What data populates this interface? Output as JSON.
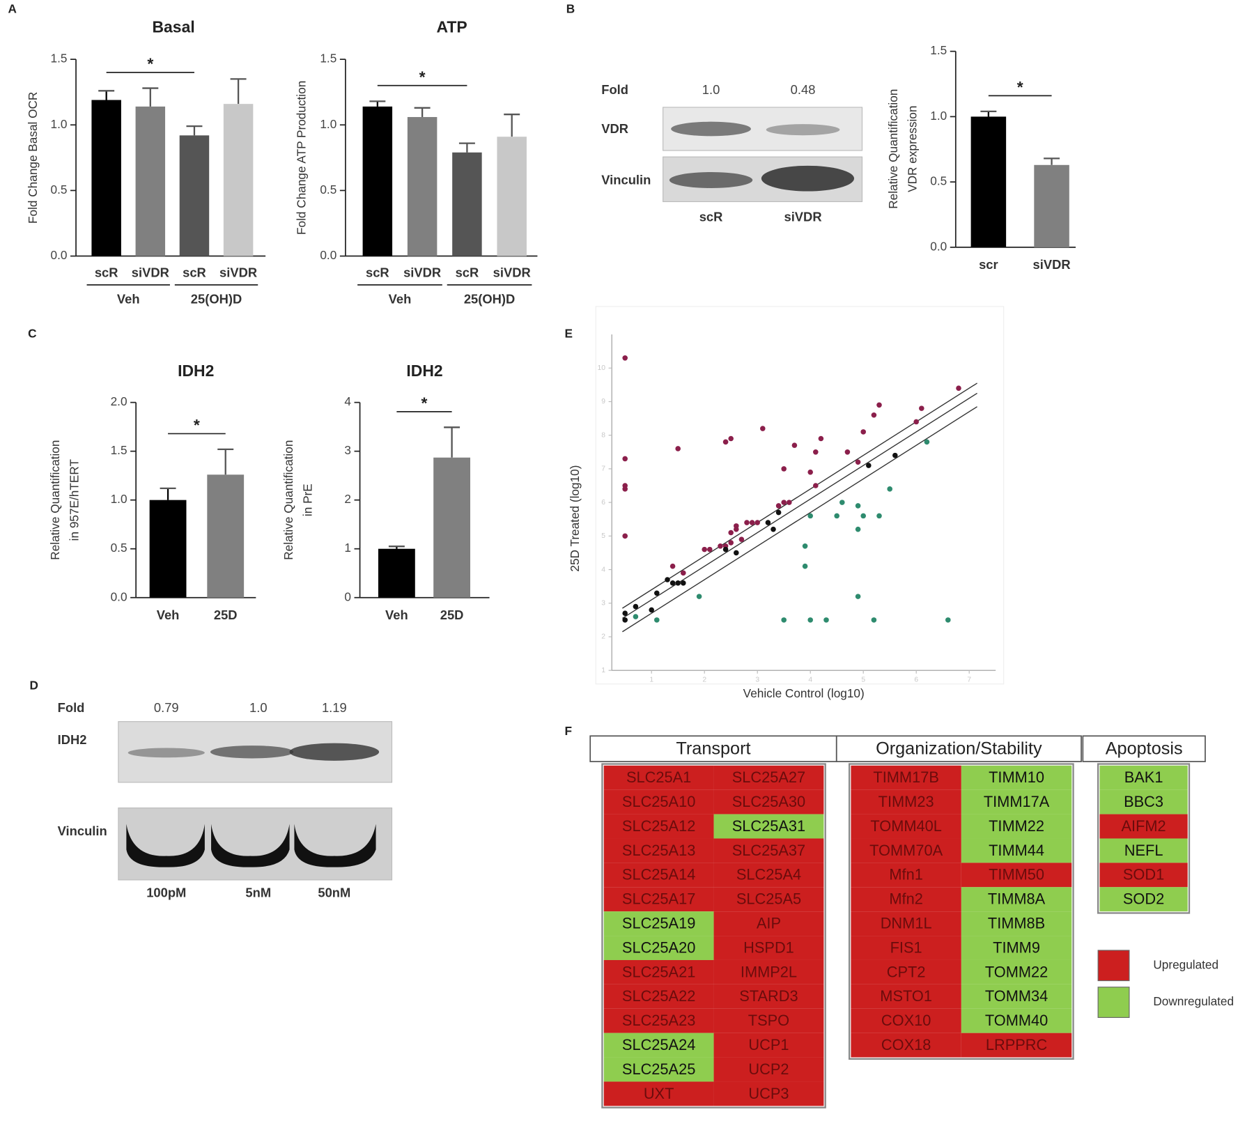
{
  "panels": [
    "A",
    "B",
    "C",
    "D",
    "E",
    "F"
  ],
  "chart_data": [
    {
      "type": "bar",
      "title": "Basal",
      "ylabel": [
        "Fold Change Basal OCR"
      ],
      "categories": [
        "scR",
        "siVDR",
        "scR",
        "siVDR"
      ],
      "groups": [
        "Veh",
        "25(OH)D"
      ],
      "values": [
        1.19,
        1.14,
        0.92,
        1.16
      ],
      "errors": [
        0.07,
        0.14,
        0.07,
        0.19
      ],
      "colors": [
        "#000000",
        "#808080",
        "#555555",
        "#c8c8c8"
      ],
      "ylim": [
        0,
        1.5
      ],
      "yticks": [
        {
          "value": 0,
          "label": "0.0"
        },
        0.5,
        {
          "value": 1,
          "label": "1.0"
        },
        1.5
      ],
      "significance": {
        "label": "*",
        "pair": [
          0,
          2
        ]
      }
    },
    {
      "type": "bar",
      "title": "ATP",
      "ylabel": [
        "Fold Change ATP Production"
      ],
      "categories": [
        "scR",
        "siVDR",
        "scR",
        "siVDR"
      ],
      "groups": [
        "Veh",
        "25(OH)D"
      ],
      "values": [
        1.14,
        1.06,
        0.79,
        0.91
      ],
      "errors": [
        0.04,
        0.07,
        0.07,
        0.17
      ],
      "colors": [
        "#000000",
        "#808080",
        "#555555",
        "#c8c8c8"
      ],
      "ylim": [
        0,
        1.5
      ],
      "yticks": [
        {
          "value": 0,
          "label": "0.0"
        },
        0.5,
        {
          "value": 1,
          "label": "1.0"
        },
        1.5
      ],
      "significance": {
        "label": "*",
        "pair": [
          0,
          2
        ]
      }
    },
    {
      "type": "bar",
      "ylabel": [
        "Relative Quantification",
        "VDR expression"
      ],
      "categories": [
        "scr",
        "siVDR"
      ],
      "values": [
        1.0,
        0.63
      ],
      "errors": [
        0.04,
        0.05
      ],
      "colors": [
        "#000000",
        "#808080"
      ],
      "ylim": [
        0,
        1.5
      ],
      "yticks": [
        {
          "value": 0,
          "label": "0.0"
        },
        0.5,
        {
          "value": 1,
          "label": "1.0"
        },
        1.5
      ],
      "significance": {
        "label": "*",
        "pair": [
          0,
          1
        ]
      }
    },
    {
      "type": "bar",
      "title": "IDH2",
      "ylabel": [
        "Relative Quantification",
        "in 957E/hTERT"
      ],
      "categories": [
        "Veh",
        "25D"
      ],
      "values": [
        1.0,
        1.26
      ],
      "errors": [
        0.12,
        0.26
      ],
      "colors": [
        "#000000",
        "#808080"
      ],
      "ylim": [
        0,
        2
      ],
      "yticks": [
        {
          "value": 0,
          "label": "0.0"
        },
        0.5,
        {
          "value": 1,
          "label": "1.0"
        },
        1.5,
        {
          "value": 2,
          "label": "2.0"
        }
      ],
      "significance": {
        "label": "*",
        "pair": [
          0,
          1
        ]
      }
    },
    {
      "type": "bar",
      "title": "IDH2",
      "ylabel": [
        "Relative Quantification",
        "in PrE"
      ],
      "categories": [
        "Veh",
        "25D"
      ],
      "values": [
        1.0,
        2.87
      ],
      "errors": [
        0.05,
        0.62
      ],
      "colors": [
        "#000000",
        "#808080"
      ],
      "ylim": [
        0,
        4
      ],
      "yticks": [
        0,
        1,
        2,
        3,
        4
      ],
      "significance": {
        "label": "*",
        "pair": [
          0,
          1
        ]
      }
    },
    {
      "type": "scatter",
      "xlabel": "Vehicle Control (log10)",
      "ylabel": "25D Treated (log10)",
      "xlim": [
        0.25,
        7.5
      ],
      "ylim": [
        1,
        11
      ],
      "xticks": [
        1,
        2,
        3,
        4,
        5,
        6,
        7
      ],
      "yticks": [
        1,
        2,
        3,
        4,
        5,
        6,
        7,
        8,
        9,
        10
      ],
      "reference_lines": [
        {
          "slope": 1,
          "intercept": 2.4
        },
        {
          "slope": 1,
          "intercept": 2.1
        },
        {
          "slope": 1,
          "intercept": 1.7
        }
      ],
      "series": [
        {
          "color": "#8b1f4b",
          "x": [
            0.5,
            0.5,
            0.5,
            0.5,
            0.5,
            1.5,
            2.4,
            2.5,
            3.1,
            3.7,
            4.2,
            4.7,
            5.0,
            5.2,
            5.3,
            6.0,
            6.1,
            6.8,
            4.1,
            3.5,
            4.0,
            4.1,
            4.9,
            1.4,
            1.6,
            2.0,
            2.1,
            2.3,
            2.5,
            2.6,
            2.6,
            2.8,
            2.9,
            3.0,
            2.7,
            3.4,
            3.5,
            3.6,
            2.5,
            2.4
          ],
          "values": [
            10.3,
            7.3,
            6.5,
            6.4,
            5.0,
            7.6,
            7.8,
            7.9,
            8.2,
            7.7,
            7.9,
            7.5,
            8.1,
            8.6,
            8.9,
            8.4,
            8.8,
            9.4,
            7.5,
            7.0,
            6.9,
            6.5,
            7.2,
            4.1,
            3.9,
            4.6,
            4.6,
            4.7,
            5.1,
            5.2,
            5.3,
            5.4,
            5.4,
            5.4,
            4.9,
            5.9,
            6.0,
            6.0,
            4.8,
            4.7
          ]
        },
        {
          "color": "#111111",
          "x": [
            0.5,
            0.5,
            0.7,
            1.0,
            1.1,
            1.3,
            1.4,
            1.5,
            1.6,
            2.4,
            2.6,
            3.2,
            3.3,
            3.4,
            5.1,
            5.6
          ],
          "values": [
            2.7,
            2.5,
            2.9,
            2.8,
            3.3,
            3.7,
            3.6,
            3.6,
            3.6,
            4.6,
            4.5,
            5.4,
            5.2,
            5.7,
            7.1,
            7.4
          ]
        },
        {
          "color": "#2e8b6e",
          "x": [
            0.7,
            1.1,
            1.9,
            3.5,
            4.0,
            4.3,
            5.2,
            6.6,
            4.9,
            3.9,
            3.9,
            4.0,
            4.5,
            4.6,
            4.9,
            5.0,
            5.3,
            5.5,
            6.2,
            4.9
          ],
          "values": [
            2.6,
            2.5,
            3.2,
            2.5,
            2.5,
            2.5,
            2.5,
            2.5,
            3.2,
            4.7,
            4.1,
            5.6,
            5.6,
            6.0,
            5.2,
            5.6,
            5.6,
            6.4,
            7.8,
            5.9
          ]
        }
      ]
    }
  ],
  "blots": [
    {
      "fold_label": "Fold",
      "fold": [
        "1.0",
        "0.48"
      ],
      "rows": [
        "VDR",
        "Vinculin"
      ],
      "lanes": [
        "scR",
        "siVDR"
      ]
    },
    {
      "fold_label": "Fold",
      "fold": [
        "0.79",
        "1.0",
        "1.19"
      ],
      "rows": [
        "IDH2",
        "Vinculin"
      ],
      "lanes": [
        "100pM",
        "5nM",
        "50nM"
      ]
    }
  ],
  "gene_table": {
    "headers": [
      "Transport",
      "Organization/Stability",
      "Apoptosis"
    ],
    "groups": [
      {
        "columns": [
          [
            {
              "name": "SLC25A1",
              "up": true
            },
            {
              "name": "SLC25A10",
              "up": true
            },
            {
              "name": "SLC25A12",
              "up": true
            },
            {
              "name": "SLC25A13",
              "up": true
            },
            {
              "name": "SLC25A14",
              "up": true
            },
            {
              "name": "SLC25A17",
              "up": true
            },
            {
              "name": "SLC25A19",
              "up": false
            },
            {
              "name": "SLC25A20",
              "up": false
            },
            {
              "name": "SLC25A21",
              "up": true
            },
            {
              "name": "SLC25A22",
              "up": true
            },
            {
              "name": "SLC25A23",
              "up": true
            },
            {
              "name": "SLC25A24",
              "up": false
            },
            {
              "name": "SLC25A25",
              "up": false
            },
            {
              "name": "UXT",
              "up": true
            }
          ],
          [
            {
              "name": "SLC25A27",
              "up": true
            },
            {
              "name": "SLC25A30",
              "up": true
            },
            {
              "name": "SLC25A31",
              "up": false
            },
            {
              "name": "SLC25A37",
              "up": true
            },
            {
              "name": "SLC25A4",
              "up": true
            },
            {
              "name": "SLC25A5",
              "up": true
            },
            {
              "name": "AIP",
              "up": true
            },
            {
              "name": "HSPD1",
              "up": true
            },
            {
              "name": "IMMP2L",
              "up": true
            },
            {
              "name": "STARD3",
              "up": true
            },
            {
              "name": "TSPO",
              "up": true
            },
            {
              "name": "UCP1",
              "up": true
            },
            {
              "name": "UCP2",
              "up": true
            },
            {
              "name": "UCP3",
              "up": true
            }
          ]
        ]
      },
      {
        "columns": [
          [
            {
              "name": "TIMM17B",
              "up": true
            },
            {
              "name": "TIMM23",
              "up": true
            },
            {
              "name": "TOMM40L",
              "up": true
            },
            {
              "name": "TOMM70A",
              "up": true
            },
            {
              "name": "Mfn1",
              "up": true
            },
            {
              "name": "Mfn2",
              "up": true
            },
            {
              "name": "DNM1L",
              "up": true
            },
            {
              "name": "FIS1",
              "up": true
            },
            {
              "name": "CPT2",
              "up": true
            },
            {
              "name": "MSTO1",
              "up": true
            },
            {
              "name": "COX10",
              "up": true
            },
            {
              "name": "COX18",
              "up": true
            }
          ],
          [
            {
              "name": "TIMM10",
              "up": false
            },
            {
              "name": "TIMM17A",
              "up": false
            },
            {
              "name": "TIMM22",
              "up": false
            },
            {
              "name": "TIMM44",
              "up": false
            },
            {
              "name": "TIMM50",
              "up": true
            },
            {
              "name": "TIMM8A",
              "up": false
            },
            {
              "name": "TIMM8B",
              "up": false
            },
            {
              "name": "TIMM9",
              "up": false
            },
            {
              "name": "TOMM22",
              "up": false
            },
            {
              "name": "TOMM34",
              "up": false
            },
            {
              "name": "TOMM40",
              "up": false
            },
            {
              "name": "LRPPRC",
              "up": true
            }
          ]
        ]
      },
      {
        "columns": [
          [
            {
              "name": "BAK1",
              "up": false
            },
            {
              "name": "BBC3",
              "up": false
            },
            {
              "name": "AIFM2",
              "up": true
            },
            {
              "name": "NEFL",
              "up": false
            },
            {
              "name": "SOD1",
              "up": true
            },
            {
              "name": "SOD2",
              "up": false
            }
          ]
        ]
      }
    ],
    "legend": [
      {
        "label": "Upregulated",
        "color": "#cc1f1f"
      },
      {
        "label": "Downregulated",
        "color": "#8fcd4f"
      }
    ]
  }
}
